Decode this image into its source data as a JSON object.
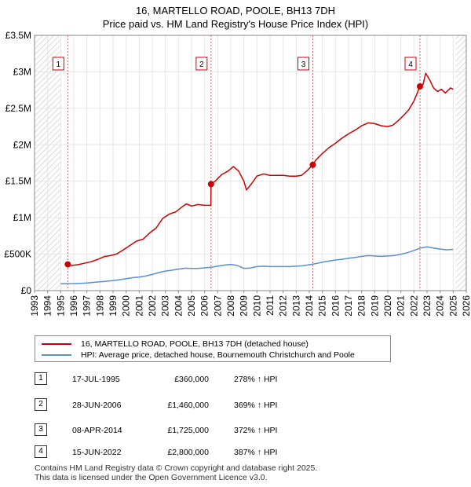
{
  "title_line1": "16, MARTELLO ROAD, POOLE, BH13 7DH",
  "title_line2": "Price paid vs. HM Land Registry's House Price Index (HPI)",
  "chart_data": {
    "type": "line",
    "title": "Price paid vs. HM Land Registry's House Price Index (HPI)",
    "xlabel": "",
    "ylabel": "",
    "xlim": [
      1993,
      2026
    ],
    "ylim": [
      0,
      3500000
    ],
    "x_ticks": [
      "1993",
      "1994",
      "1995",
      "1996",
      "1997",
      "1998",
      "1999",
      "2000",
      "2001",
      "2002",
      "2003",
      "2004",
      "2005",
      "2006",
      "2007",
      "2008",
      "2009",
      "2010",
      "2011",
      "2012",
      "2013",
      "2014",
      "2015",
      "2016",
      "2017",
      "2018",
      "2019",
      "2020",
      "2021",
      "2022",
      "2023",
      "2024",
      "2025",
      "2026"
    ],
    "y_ticks": [
      {
        "value": 0,
        "label": "£0"
      },
      {
        "value": 500000,
        "label": "£500K"
      },
      {
        "value": 1000000,
        "label": "£1M"
      },
      {
        "value": 1500000,
        "label": "£1.5M"
      },
      {
        "value": 2000000,
        "label": "£2M"
      },
      {
        "value": 2500000,
        "label": "£2.5M"
      },
      {
        "value": 3000000,
        "label": "£3M"
      },
      {
        "value": 3500000,
        "label": "£3.5M"
      }
    ],
    "grid": true,
    "hatched_ranges": [
      [
        1993,
        1995.0
      ],
      [
        2025.2,
        2026
      ]
    ],
    "series": [
      {
        "name": "16, MARTELLO ROAD, POOLE, BH13 7DH (detached house)",
        "color": "#cc0000",
        "x": [
          1995.54,
          1995.8,
          1996.3,
          1996.8,
          1997.3,
          1997.8,
          1998.3,
          1998.8,
          1999.3,
          1999.8,
          2000.3,
          2000.8,
          2001.3,
          2001.8,
          2002.3,
          2002.8,
          2003.3,
          2003.8,
          2004.3,
          2004.6,
          2005.0,
          2005.5,
          2006.0,
          2006.48,
          2006.49,
          2006.8,
          2007.3,
          2007.8,
          2008.2,
          2008.6,
          2009.0,
          2009.2,
          2009.6,
          2010.0,
          2010.5,
          2011.0,
          2011.5,
          2012.0,
          2012.5,
          2013.0,
          2013.4,
          2013.8,
          2014.27,
          2014.5,
          2015.0,
          2015.5,
          2016.0,
          2016.5,
          2017.0,
          2017.5,
          2018.0,
          2018.5,
          2019.0,
          2019.5,
          2020.0,
          2020.4,
          2020.8,
          2021.2,
          2021.6,
          2022.0,
          2022.46,
          2022.7,
          2022.9,
          2023.2,
          2023.5,
          2023.8,
          2024.1,
          2024.4,
          2024.8,
          2025.0
        ],
        "y": [
          360000,
          345000,
          355000,
          375000,
          395000,
          425000,
          465000,
          480000,
          505000,
          560000,
          620000,
          680000,
          705000,
          790000,
          860000,
          990000,
          1050000,
          1080000,
          1150000,
          1190000,
          1160000,
          1180000,
          1170000,
          1170000,
          1460000,
          1500000,
          1590000,
          1640000,
          1700000,
          1640000,
          1500000,
          1380000,
          1470000,
          1570000,
          1600000,
          1580000,
          1580000,
          1580000,
          1570000,
          1570000,
          1580000,
          1640000,
          1725000,
          1790000,
          1880000,
          1960000,
          2020000,
          2090000,
          2150000,
          2200000,
          2260000,
          2300000,
          2290000,
          2260000,
          2250000,
          2270000,
          2330000,
          2400000,
          2480000,
          2600000,
          2800000,
          2830000,
          2980000,
          2890000,
          2780000,
          2730000,
          2760000,
          2710000,
          2780000,
          2760000
        ]
      },
      {
        "name": "HPI: Average price, detached house, Bournemouth Christchurch and Poole",
        "color": "#5a8fd0",
        "x": [
          1995.0,
          1995.5,
          1996.0,
          1996.5,
          1997.0,
          1997.5,
          1998.0,
          1998.5,
          1999.0,
          1999.5,
          2000.0,
          2000.5,
          2001.0,
          2001.5,
          2002.0,
          2002.5,
          2003.0,
          2003.5,
          2004.0,
          2004.5,
          2005.0,
          2005.5,
          2006.0,
          2006.5,
          2007.0,
          2007.5,
          2008.0,
          2008.5,
          2009.0,
          2009.5,
          2010.0,
          2010.5,
          2011.0,
          2011.5,
          2012.0,
          2012.5,
          2013.0,
          2013.5,
          2014.0,
          2014.5,
          2015.0,
          2015.5,
          2016.0,
          2016.5,
          2017.0,
          2017.5,
          2018.0,
          2018.5,
          2019.0,
          2019.5,
          2020.0,
          2020.5,
          2021.0,
          2021.5,
          2022.0,
          2022.5,
          2023.0,
          2023.5,
          2024.0,
          2024.5,
          2025.0
        ],
        "y": [
          95000,
          96000,
          97000,
          100000,
          106000,
          113000,
          121000,
          129000,
          137000,
          150000,
          165000,
          178000,
          185000,
          200000,
          222000,
          248000,
          268000,
          280000,
          295000,
          308000,
          305000,
          305000,
          312000,
          320000,
          335000,
          350000,
          360000,
          345000,
          305000,
          310000,
          330000,
          335000,
          330000,
          330000,
          330000,
          330000,
          335000,
          340000,
          355000,
          370000,
          390000,
          405000,
          420000,
          430000,
          445000,
          455000,
          470000,
          480000,
          475000,
          470000,
          475000,
          480000,
          500000,
          520000,
          550000,
          585000,
          600000,
          585000,
          570000,
          560000,
          565000
        ]
      }
    ],
    "sales": [
      {
        "id": "1",
        "x": 1995.54,
        "y": 360000
      },
      {
        "id": "2",
        "x": 2006.49,
        "y": 1460000
      },
      {
        "id": "3",
        "x": 2014.27,
        "y": 1725000
      },
      {
        "id": "4",
        "x": 2022.46,
        "y": 2800000
      }
    ]
  },
  "legend": {
    "items": [
      {
        "label": "16, MARTELLO ROAD, POOLE, BH13 7DH (detached house)",
        "color": "#cc0000"
      },
      {
        "label": "HPI: Average price, detached house, Bournemouth Christchurch and Poole",
        "color": "#5a8fd0"
      }
    ]
  },
  "table": {
    "rows": [
      {
        "num": "1",
        "date": "17-JUL-1995",
        "price": "£360,000",
        "hpi": "278% ↑ HPI"
      },
      {
        "num": "2",
        "date": "28-JUN-2006",
        "price": "£1,460,000",
        "hpi": "369% ↑ HPI"
      },
      {
        "num": "3",
        "date": "08-APR-2014",
        "price": "£1,725,000",
        "hpi": "372% ↑ HPI"
      },
      {
        "num": "4",
        "date": "15-JUN-2022",
        "price": "£2,800,000",
        "hpi": "387% ↑ HPI"
      }
    ]
  },
  "footer": {
    "line1": "Contains HM Land Registry data © Crown copyright and database right 2025.",
    "line2": "This data is licensed under the Open Government Licence v3.0."
  }
}
